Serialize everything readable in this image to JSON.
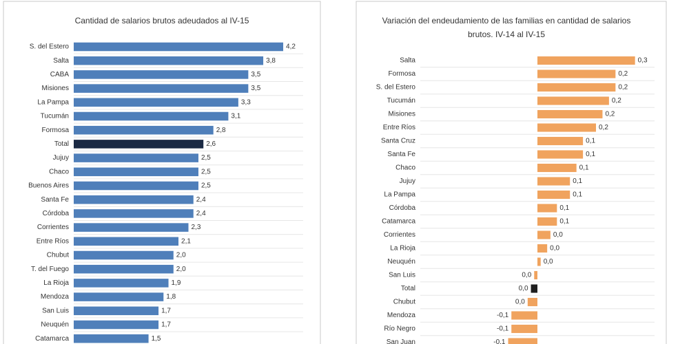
{
  "chart_data": [
    {
      "type": "bar",
      "orientation": "horizontal",
      "title": "Cantidad de salarios brutos adeudados al IV-15",
      "categories": [
        "S. del Estero",
        "Salta",
        "CABA",
        "Misiones",
        "La Pampa",
        "Tucumán",
        "Formosa",
        "Total",
        "Jujuy",
        "Chaco",
        "Buenos Aires",
        "Santa Fe",
        "Córdoba",
        "Corrientes",
        "Entre Ríos",
        "Chubut",
        "T. del Fuego",
        "La Rioja",
        "Mendoza",
        "San Luis",
        "Neuquén",
        "Catamarca"
      ],
      "values": [
        4.2,
        3.8,
        3.5,
        3.5,
        3.3,
        3.1,
        2.8,
        2.6,
        2.5,
        2.5,
        2.5,
        2.4,
        2.4,
        2.3,
        2.1,
        2.0,
        2.0,
        1.9,
        1.8,
        1.7,
        1.7,
        1.5
      ],
      "value_labels": [
        "4,2",
        "3,8",
        "3,5",
        "3,5",
        "3,3",
        "3,1",
        "2,8",
        "2,6",
        "2,5",
        "2,5",
        "2,5",
        "2,4",
        "2,4",
        "2,3",
        "2,1",
        "2,0",
        "2,0",
        "1,9",
        "1,8",
        "1,7",
        "1,7",
        "1,5"
      ],
      "colors": [
        "#4f7fba",
        "#4f7fba",
        "#4f7fba",
        "#4f7fba",
        "#4f7fba",
        "#4f7fba",
        "#4f7fba",
        "#1b2a44",
        "#4f7fba",
        "#4f7fba",
        "#4f7fba",
        "#4f7fba",
        "#4f7fba",
        "#4f7fba",
        "#4f7fba",
        "#4f7fba",
        "#4f7fba",
        "#4f7fba",
        "#4f7fba",
        "#4f7fba",
        "#4f7fba",
        "#4f7fba"
      ],
      "xlim": [
        0,
        4.6
      ]
    },
    {
      "type": "bar",
      "orientation": "horizontal",
      "title": "Variación del endeudamiento de las familias en cantidad de salarios brutos. IV-14 al IV-15",
      "categories": [
        "Salta",
        "Formosa",
        "S. del Estero",
        "Tucumán",
        "Misiones",
        "Entre Ríos",
        "Santa Cruz",
        "Santa Fe",
        "Chaco",
        "Jujuy",
        "La Pampa",
        "Córdoba",
        "Catamarca",
        "Corrientes",
        "La Rioja",
        "Neuquén",
        "San Luis",
        "Total",
        "Chubut",
        "Mendoza",
        "Río Negro",
        "San Juan"
      ],
      "values": [
        0.3,
        0.24,
        0.24,
        0.22,
        0.2,
        0.18,
        0.14,
        0.14,
        0.12,
        0.1,
        0.1,
        0.06,
        0.06,
        0.04,
        0.03,
        0.01,
        -0.01,
        -0.02,
        -0.03,
        -0.08,
        -0.08,
        -0.09
      ],
      "value_labels": [
        "0,3",
        "0,2",
        "0,2",
        "0,2",
        "0,2",
        "0,2",
        "0,1",
        "0,1",
        "0,1",
        "0,1",
        "0,1",
        "0,1",
        "0,1",
        "0,0",
        "0,0",
        "0,0",
        "0,0",
        "0,0",
        "0,0",
        "-0,1",
        "-0,1",
        "-0,1"
      ],
      "colors": [
        "#f0a35e",
        "#f0a35e",
        "#f0a35e",
        "#f0a35e",
        "#f0a35e",
        "#f0a35e",
        "#f0a35e",
        "#f0a35e",
        "#f0a35e",
        "#f0a35e",
        "#f0a35e",
        "#f0a35e",
        "#f0a35e",
        "#f0a35e",
        "#f0a35e",
        "#f0a35e",
        "#f0a35e",
        "#1e1e1e",
        "#f0a35e",
        "#f0a35e",
        "#f0a35e",
        "#f0a35e"
      ],
      "xlim": [
        -0.36,
        0.36
      ]
    }
  ]
}
